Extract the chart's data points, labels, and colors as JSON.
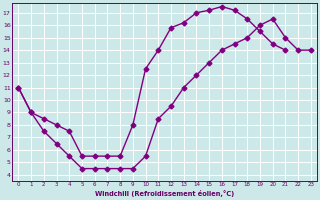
{
  "xlabel": "Windchill (Refroidissement éolien,°C)",
  "line1_x": [
    0,
    1,
    2,
    3,
    4,
    5,
    6,
    7,
    8,
    9,
    10,
    11,
    12,
    13,
    14,
    15,
    16,
    17,
    18,
    19,
    20,
    21,
    22,
    23
  ],
  "line1_y": [
    11,
    9,
    8.5,
    8,
    7.5,
    5.5,
    5.5,
    5.5,
    5.5,
    8.0,
    12.5,
    14.0,
    15.8,
    16.2,
    17.0,
    17.2,
    17.5,
    17.2,
    16.5,
    15.5,
    14.5,
    14.0,
    null,
    null
  ],
  "line2_x": [
    0,
    1,
    2,
    3,
    4,
    5,
    6,
    7,
    8,
    9,
    10,
    11,
    12,
    13,
    14,
    15,
    16,
    17,
    18,
    19,
    20,
    21,
    22,
    23
  ],
  "line2_y": [
    11,
    9,
    7.5,
    6.5,
    5.5,
    4.5,
    4.5,
    4.5,
    4.5,
    4.5,
    5.5,
    8.5,
    9.5,
    11.0,
    12.0,
    13.0,
    14.0,
    14.5,
    15.0,
    16.0,
    16.5,
    15.0,
    14.0,
    14.0
  ],
  "color": "#800080",
  "marker": "D",
  "markersize": 2.5,
  "linewidth": 1.0,
  "xlim": [
    -0.5,
    23.5
  ],
  "ylim": [
    3.5,
    17.8
  ],
  "yticks": [
    4,
    5,
    6,
    7,
    8,
    9,
    10,
    11,
    12,
    13,
    14,
    15,
    16,
    17
  ],
  "xticks": [
    0,
    1,
    2,
    3,
    4,
    5,
    6,
    7,
    8,
    9,
    10,
    11,
    12,
    13,
    14,
    15,
    16,
    17,
    18,
    19,
    20,
    21,
    22,
    23
  ],
  "bg_color": "#cce8e8",
  "grid_color": "#ffffff",
  "text_color": "#660066",
  "axis_color": "#660066"
}
